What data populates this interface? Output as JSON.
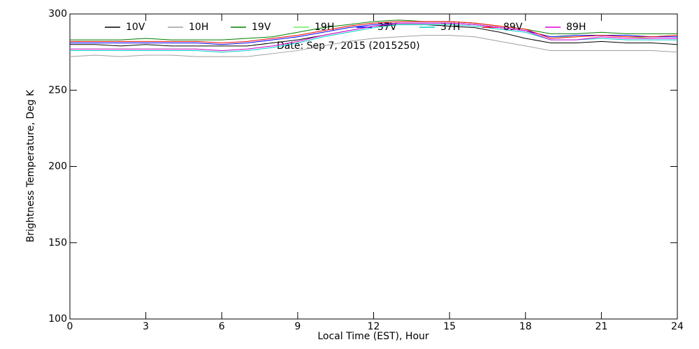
{
  "chart_data": {
    "type": "line",
    "xlabel": "Local Time (EST), Hour",
    "ylabel": "Brightness Temperature, Deg K",
    "annotation": "Date: Sep  7, 2015 (2015250)",
    "x": [
      0,
      1,
      2,
      3,
      4,
      5,
      6,
      7,
      8,
      9,
      10,
      11,
      12,
      13,
      14,
      15,
      16,
      17,
      18,
      19,
      20,
      21,
      22,
      23,
      24
    ],
    "xlim": [
      0,
      24
    ],
    "xticks": [
      0,
      3,
      6,
      9,
      12,
      15,
      18,
      21,
      24
    ],
    "ylim": [
      100,
      300
    ],
    "yticks": [
      100,
      150,
      200,
      250,
      300
    ],
    "series": [
      {
        "name": "10V",
        "color": "#000000",
        "values": [
          280,
          280,
          279,
          280,
          279,
          279,
          279,
          279,
          281,
          283,
          286,
          289,
          292,
          293,
          293,
          292,
          291,
          288,
          284,
          281,
          281,
          282,
          281,
          281,
          280
        ]
      },
      {
        "name": "10H",
        "color": "#a0a0a0",
        "values": [
          272,
          273,
          272,
          273,
          273,
          272,
          272,
          272,
          274,
          276,
          279,
          282,
          284,
          285,
          286,
          286,
          285,
          282,
          279,
          276,
          276,
          276,
          276,
          276,
          275
        ]
      },
      {
        "name": "19V",
        "color": "#008000",
        "values": [
          283,
          283,
          283,
          284,
          283,
          283,
          283,
          284,
          285,
          288,
          291,
          293,
          295,
          296,
          295,
          295,
          294,
          292,
          290,
          287,
          287,
          288,
          287,
          287,
          287
        ]
      },
      {
        "name": "19H",
        "color": "#66ee66",
        "values": [
          277,
          277,
          277,
          277,
          277,
          277,
          276,
          277,
          279,
          282,
          286,
          289,
          292,
          294,
          294,
          294,
          293,
          291,
          289,
          285,
          285,
          286,
          285,
          284,
          284
        ]
      },
      {
        "name": "37V",
        "color": "#0000ff",
        "values": [
          281,
          281,
          281,
          281,
          281,
          281,
          280,
          281,
          283,
          285,
          288,
          291,
          293,
          294,
          294,
          294,
          293,
          291,
          289,
          285,
          286,
          286,
          286,
          285,
          285
        ]
      },
      {
        "name": "37H",
        "color": "#00c8c8",
        "values": [
          276,
          276,
          276,
          276,
          276,
          276,
          275,
          276,
          278,
          281,
          285,
          288,
          291,
          293,
          293,
          293,
          292,
          290,
          288,
          283,
          283,
          284,
          283,
          283,
          283
        ]
      },
      {
        "name": "89V",
        "color": "#ff0000",
        "values": [
          282,
          282,
          282,
          282,
          282,
          282,
          281,
          282,
          284,
          286,
          289,
          292,
          294,
          295,
          295,
          295,
          294,
          292,
          290,
          284,
          285,
          286,
          285,
          285,
          286
        ]
      },
      {
        "name": "89H",
        "color": "#e000e0",
        "values": [
          277,
          277,
          277,
          277,
          277,
          277,
          276,
          277,
          279,
          282,
          286,
          289,
          292,
          294,
          294,
          294,
          293,
          291,
          289,
          283,
          283,
          285,
          284,
          284,
          284
        ]
      }
    ]
  }
}
